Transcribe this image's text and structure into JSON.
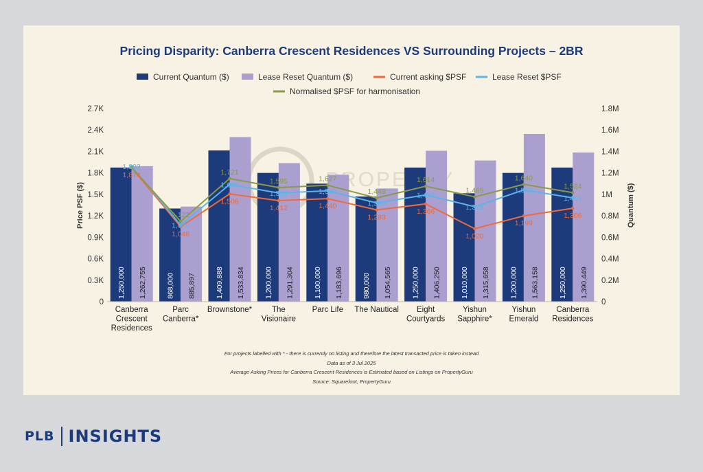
{
  "chart_data": {
    "type": "bar",
    "title": "Pricing Disparity: Canberra Crescent Residences VS Surrounding Projects – 2BR",
    "ylabel": "Price PSF ($)",
    "y2label": "Quantum ($)",
    "ylim": [
      0,
      2700
    ],
    "y2lim": [
      0,
      1800000
    ],
    "yticks": [
      "0",
      "0.3K",
      "0.6K",
      "0.9K",
      "1.2K",
      "1.5K",
      "1.8K",
      "2.1K",
      "2.4K",
      "2.7K"
    ],
    "y2ticks": [
      "0",
      "0.2M",
      "0.4M",
      "0.6M",
      "0.8M",
      "1M",
      "1.2M",
      "1.4M",
      "1.6M",
      "1.8M"
    ],
    "categories": [
      [
        "Canberra",
        "Crescent",
        "Residences"
      ],
      [
        "Parc",
        "Canberra*"
      ],
      [
        "Brownstone*"
      ],
      [
        "The",
        "Visionaire"
      ],
      [
        "Parc Life"
      ],
      [
        "The Nautical"
      ],
      [
        "Eight",
        "Courtyards"
      ],
      [
        "Yishun",
        "Sapphire*"
      ],
      [
        "Yishun",
        "Emerald"
      ],
      [
        "Canberra",
        "Residences"
      ]
    ],
    "bar_series": [
      {
        "name": "Current Quantum ($)",
        "color": "#1d3a7a",
        "values": [
          1250000,
          868000,
          1409888,
          1200000,
          1100000,
          980000,
          1250000,
          1010000,
          1200000,
          1250000
        ],
        "labels": [
          "1,250,000",
          "868,000",
          "1,409,888",
          "1,200,000",
          "1,100,000",
          "980,000",
          "1,250,000",
          "1,010,000",
          "1,200,000",
          "1,250,000"
        ]
      },
      {
        "name": "Lease Reset Quantum ($)",
        "color": "#ab9fd0",
        "values": [
          1262755,
          885897,
          1533834,
          1291304,
          1183696,
          1054565,
          1406250,
          1315658,
          1563158,
          1390449
        ],
        "labels": [
          "1,262,755",
          "885,897",
          "1,533,834",
          "1,291,304",
          "1,183,696",
          "1,054,565",
          "1,406,250",
          "1,315,658",
          "1,563,158",
          "1,390,449"
        ]
      }
    ],
    "line_series": [
      {
        "name": "Current asking $PSF",
        "color": "#ef6a3c",
        "values": [
          1874,
          1048,
          1506,
          1412,
          1440,
          1283,
          1366,
          1020,
          1199,
          1306
        ],
        "labels": [
          "1,874",
          "1,048",
          "1,506",
          "1,412",
          "1,440",
          "1,283",
          "1,366",
          "1,020",
          "1,199",
          "1,306"
        ]
      },
      {
        "name": "Lease Reset $PSF",
        "color": "#5cb5e8",
        "values": [
          1893,
          1070,
          1638,
          1519,
          1549,
          1380,
          1493,
          1328,
          1562,
          1451
        ],
        "labels": [
          "1,893",
          "1,070",
          "1,638",
          "1,519",
          "1,549",
          "1,380",
          "1,493",
          "1,328",
          "1,562",
          "1,451"
        ]
      },
      {
        "name": "Normalised $PSF for harmonisation",
        "color": "#8a9a46",
        "values": [
          1874,
          1122,
          1721,
          1595,
          1627,
          1449,
          1614,
          1465,
          1640,
          1524
        ],
        "labels": [
          "",
          "1,122",
          "1,721",
          "1,595",
          "1,627",
          "1,449",
          "1,614",
          "1,465",
          "1,640",
          "1,524"
        ]
      }
    ],
    "watermark": "PROPERTY",
    "notes": [
      "For projects labelled with * - there is currently no listing and therefore the latest transacted price is taken instead",
      "Data as of 3 Jul 2025",
      "Average Asking Prices for Canberra Crescent Residences is Estimated based on Listings on PropertyGuru",
      "Source: Squarefoot, PropertyGuru"
    ]
  },
  "brand": {
    "left": "PLB",
    "right": "INSIGHTS"
  }
}
